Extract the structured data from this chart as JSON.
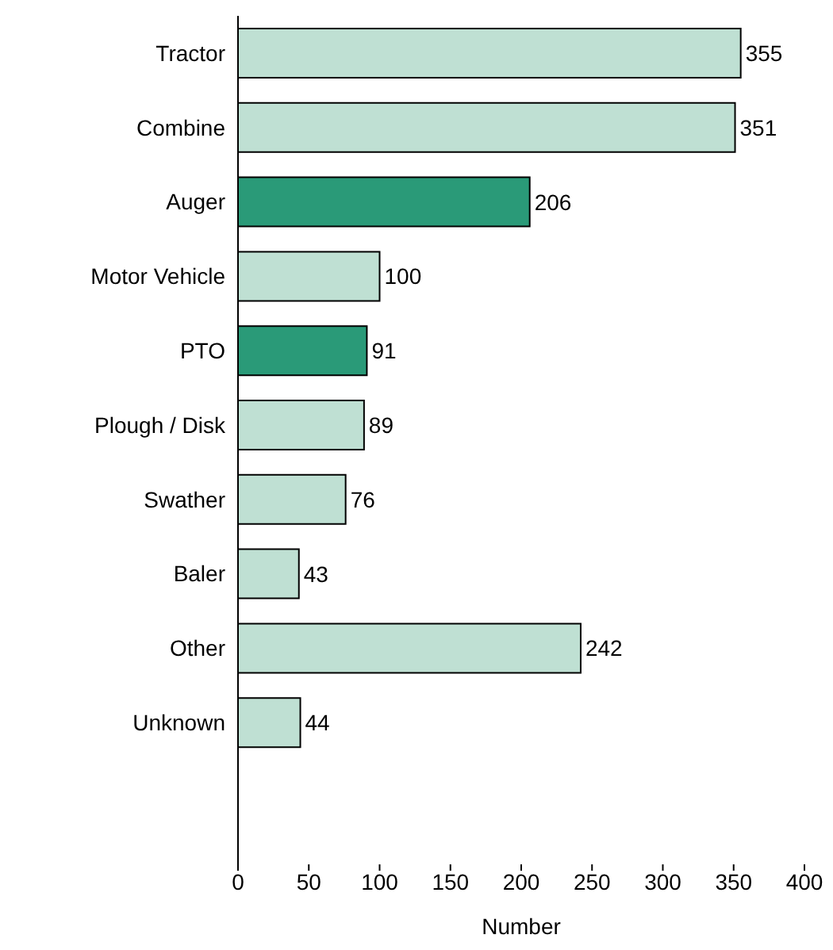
{
  "chart_data": {
    "type": "bar",
    "orientation": "horizontal",
    "xlabel": "Number",
    "categories": [
      "Tractor",
      "Combine",
      "Auger",
      "Motor Vehicle",
      "PTO",
      "Plough / Disk",
      "Swather",
      "Baler",
      "Other",
      "Unknown"
    ],
    "values": [
      355,
      351,
      206,
      100,
      91,
      89,
      76,
      43,
      242,
      44
    ],
    "colors": [
      "#bfe0d3",
      "#bfe0d3",
      "#2a9a78",
      "#bfe0d3",
      "#2a9a78",
      "#bfe0d3",
      "#bfe0d3",
      "#bfe0d3",
      "#bfe0d3",
      "#bfe0d3"
    ],
    "xlim": [
      0,
      400
    ],
    "xticks": [
      0,
      50,
      100,
      150,
      200,
      250,
      300,
      350,
      400
    ],
    "data_labels": true
  }
}
